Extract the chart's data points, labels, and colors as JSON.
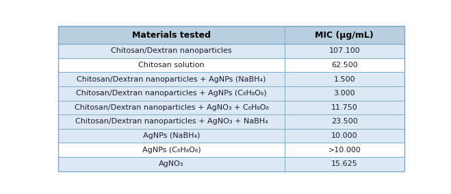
{
  "col_headers": [
    "Materials tested",
    "MIC (µg/mL)"
  ],
  "rows": [
    [
      "Chitosan/Dextran nanoparticles",
      "107.100"
    ],
    [
      "Chitosan solution",
      "62.500"
    ],
    [
      "Chitosan/Dextran nanoparticles + AgNPs (NaBH₄)",
      "1.500"
    ],
    [
      "Chitosan/Dextran nanoparticles + AgNPs (C₆H₈O₆)",
      "3.000"
    ],
    [
      "Chitosan/Dextran nanoparticles + AgNO₃ + C₆H₈O₆",
      "11.750"
    ],
    [
      "Chitosan/Dextran nanoparticles + AgNO₃ + NaBH₄",
      "23.500"
    ],
    [
      "AgNPs (NaBH₄)",
      "10.000"
    ],
    [
      "AgNPs (C₆H₈O₆)",
      ">10.000"
    ],
    [
      "AgNO₃",
      "15.625"
    ]
  ],
  "header_bg": "#b8cfe0",
  "row_bg_alt": "#dce9f5",
  "row_bg_white": "#ffffff",
  "border_color": "#7aaac8",
  "text_color": "#1a1a2e",
  "header_text_color": "#000000",
  "font_size": 8.0,
  "header_font_size": 9.0,
  "col_split": 0.655,
  "figsize": [
    6.59,
    2.83
  ],
  "dpi": 100
}
